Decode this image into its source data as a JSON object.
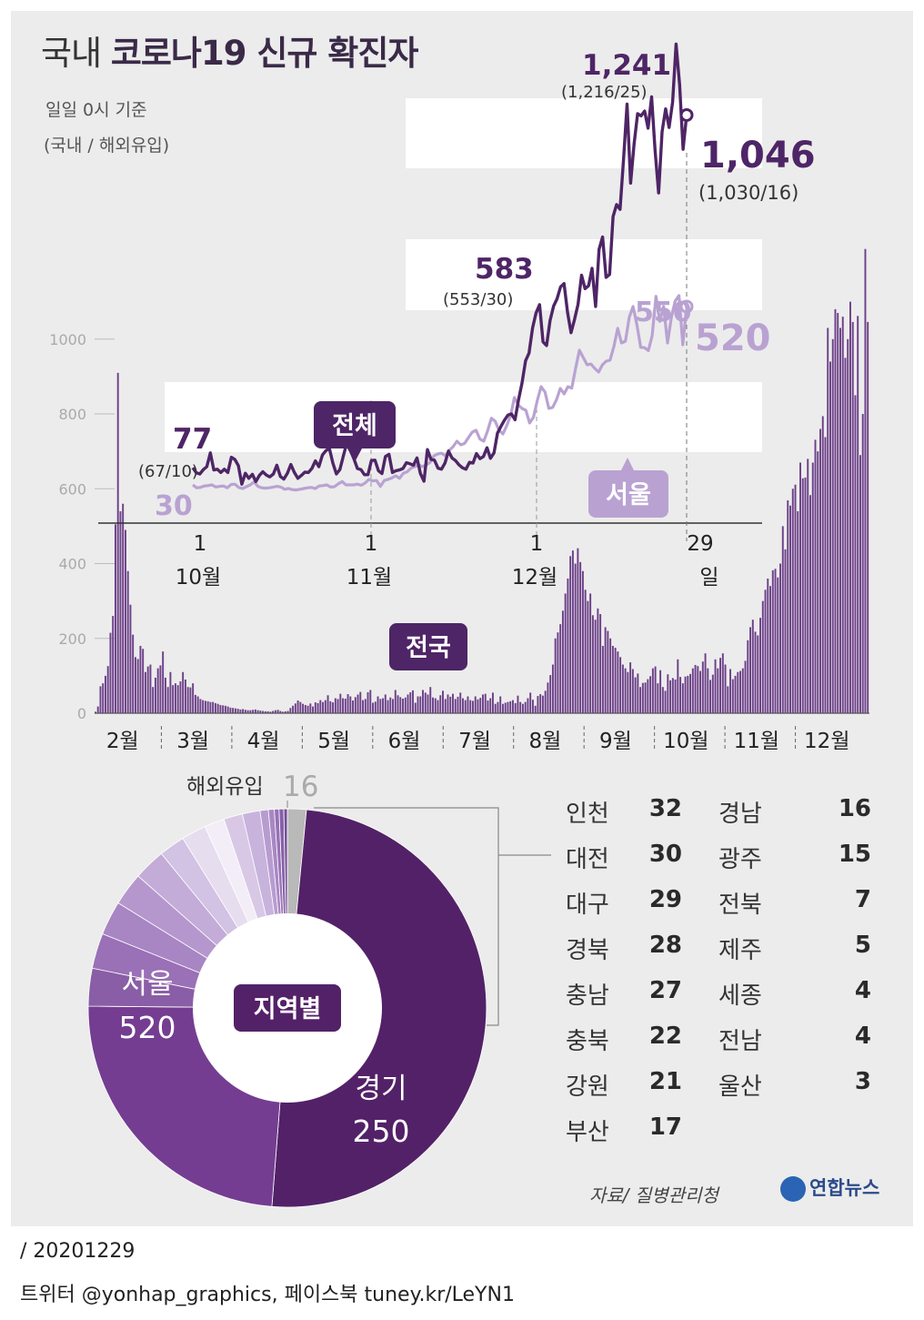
{
  "header": {
    "title_part1": "국내 ",
    "title_part2": "코로나19 신규 확진자",
    "subtitle1": "일일 0시 기준",
    "subtitle2": "(국내 / 해외유입)"
  },
  "chart_data": [
    {
      "type": "bar",
      "name_label": "전국",
      "x_labels": [
        "2월",
        "3월",
        "4월",
        "5월",
        "6월",
        "7월",
        "8월",
        "9월",
        "10월",
        "11월",
        "12월"
      ],
      "y_ticks": [
        "0",
        "200",
        "400",
        "600",
        "800",
        "1000"
      ],
      "ylim": [
        0,
        1250
      ],
      "values": [
        4,
        18,
        72,
        80,
        100,
        126,
        215,
        260,
        505,
        910,
        540,
        560,
        490,
        380,
        290,
        210,
        150,
        145,
        180,
        172,
        110,
        125,
        130,
        70,
        95,
        120,
        128,
        165,
        95,
        70,
        110,
        75,
        80,
        75,
        85,
        110,
        90,
        70,
        69,
        80,
        49,
        45,
        38,
        35,
        33,
        32,
        30,
        30,
        27,
        25,
        22,
        21,
        20,
        18,
        15,
        14,
        13,
        12,
        10,
        11,
        9,
        8,
        8,
        9,
        10,
        8,
        7,
        6,
        5,
        5,
        4,
        6,
        8,
        9,
        6,
        4,
        5,
        6,
        14,
        20,
        26,
        34,
        30,
        25,
        22,
        20,
        26,
        18,
        29,
        27,
        35,
        30,
        35,
        48,
        32,
        29,
        40,
        38,
        52,
        40,
        39,
        51,
        45,
        34,
        43,
        50,
        57,
        35,
        38,
        56,
        62,
        28,
        31,
        45,
        38,
        40,
        50,
        35,
        42,
        38,
        62,
        48,
        43,
        39,
        42,
        50,
        56,
        61,
        28,
        45,
        45,
        62,
        55,
        50,
        70,
        42,
        40,
        35,
        48,
        60,
        38,
        50,
        44,
        52,
        38,
        44,
        55,
        40,
        35,
        45,
        35,
        33,
        45,
        37,
        41,
        50,
        52,
        34,
        40,
        55,
        25,
        30,
        45,
        25,
        28,
        30,
        32,
        35,
        27,
        47,
        30,
        25,
        30,
        40,
        55,
        36,
        20,
        46,
        51,
        47,
        60,
        82,
        102,
        130,
        200,
        216,
        238,
        274,
        320,
        360,
        420,
        435,
        400,
        441,
        404,
        380,
        330,
        300,
        320,
        262,
        250,
        280,
        265,
        180,
        230,
        220,
        200,
        180,
        175,
        165,
        150,
        130,
        120,
        110,
        136,
        118,
        96,
        106,
        70,
        81,
        82,
        91,
        99,
        120,
        125,
        80,
        115,
        70,
        60,
        104,
        88,
        94,
        90,
        144,
        97,
        80,
        98,
        100,
        105,
        120,
        129,
        126,
        113,
        138,
        160,
        120,
        89,
        103,
        144,
        120,
        148,
        160,
        130,
        72,
        118,
        91,
        100,
        110,
        113,
        120,
        140,
        195,
        230,
        250,
        218,
        208,
        255,
        300,
        330,
        360,
        340,
        382,
        386,
        363,
        400,
        500,
        438,
        569,
        555,
        600,
        611,
        540,
        670,
        628,
        630,
        680,
        583,
        670,
        731,
        700,
        760,
        794,
        738,
        1030,
        940,
        1000,
        1080,
        1070,
        1030,
        1060,
        950,
        1000,
        1100,
        1046,
        850,
        1062,
        690,
        800,
        1241,
        1046
      ]
    },
    {
      "type": "line",
      "x_ticks": [
        {
          "day": "1",
          "month": "10월"
        },
        {
          "day": "1",
          "month": "11월"
        },
        {
          "day": "1",
          "month": "12월"
        },
        {
          "day": "29",
          "month": "일"
        }
      ],
      "series": [
        {
          "name": "전체",
          "start_value": "77",
          "start_detail": "(67/10)",
          "peak_value": "583",
          "peak_detail": "(553/30)",
          "max_value": "1,241",
          "max_detail": "(1,216/25)",
          "end_value": "1,046",
          "end_detail": "(1,030/16)",
          "values": [
            77,
            63,
            60,
            72,
            80,
            118,
            71,
            73,
            64,
            73,
            64,
            106,
            100,
            83,
            32,
            62,
            48,
            59,
            39,
            56,
            66,
            57,
            52,
            60,
            84,
            53,
            46,
            62,
            86,
            64,
            48,
            56,
            65,
            64,
            75,
            96,
            80,
            112,
            124,
            130,
            90,
            60,
            72,
            110,
            146,
            125,
            102,
            75,
            72,
            58,
            58,
            97,
            98,
            69,
            61,
            108,
            114,
            64,
            69,
            71,
            75,
            91,
            88,
            84,
            104,
            61,
            40,
            127,
            100,
            98,
            76,
            73,
            90,
            123,
            104,
            97,
            85,
            77,
            73,
            92,
            90,
            116,
            102,
            108,
            132,
            103,
            118,
            172,
            191,
            208,
            222,
            225,
            209,
            263,
            310,
            371,
            392,
            461,
            502,
            525,
            423,
            413,
            481,
            521,
            541,
            574,
            583,
            503,
            448,
            485,
            526,
            606,
            569,
            577,
            625,
            520,
            677,
            711,
            600,
            608,
            767,
            800,
            787,
            927,
            1076,
            859,
            966,
            1050,
            1044,
            1057,
            1010,
            1096,
            949,
            832,
            1000,
            1063,
            1012,
            1082,
            1241,
            1129,
            952,
            1046
          ]
        },
        {
          "name": "서울",
          "start_value": "30",
          "end_value": "520",
          "max_value": "550",
          "values": [
            30,
            22,
            23,
            27,
            28,
            30,
            24,
            26,
            27,
            22,
            31,
            32,
            23,
            20,
            25,
            30,
            38,
            26,
            22,
            21,
            22,
            24,
            26,
            24,
            18,
            20,
            17,
            16,
            18,
            20,
            22,
            23,
            20,
            27,
            28,
            30,
            24,
            25,
            33,
            39,
            30,
            30,
            30,
            32,
            29,
            35,
            45,
            41,
            42,
            26,
            42,
            45,
            49,
            55,
            48,
            62,
            66,
            76,
            80,
            85,
            80,
            85,
            92,
            110,
            115,
            117,
            110,
            125,
            135,
            150,
            140,
            144,
            160,
            175,
            180,
            156,
            150,
            178,
            213,
            205,
            180,
            170,
            193,
            220,
            270,
            250,
            240,
            235,
            200,
            216,
            262,
            300,
            285,
            240,
            243,
            264,
            295,
            280,
            300,
            296,
            350,
            400,
            380,
            360,
            362,
            350,
            340,
            360,
            370,
            373,
            410,
            460,
            420,
            425,
            490,
            520,
            470,
            408,
            407,
            399,
            440,
            548,
            479,
            520,
            420,
            490,
            535,
            550,
            415,
            520
          ]
        }
      ]
    },
    {
      "type": "pie",
      "center_label": "지역별",
      "slices": [
        {
          "label": "해외유입",
          "value": 16,
          "color": "#b9b9b9"
        },
        {
          "label": "서울",
          "value": 520,
          "color": "#532168"
        },
        {
          "label": "경기",
          "value": 250,
          "color": "#743d91"
        },
        {
          "label": "인천",
          "value": 32,
          "color": "#8a5ea6"
        },
        {
          "label": "대전",
          "value": 30,
          "color": "#9a70b6"
        },
        {
          "label": "대구",
          "value": 29,
          "color": "#a885c3"
        },
        {
          "label": "경북",
          "value": 28,
          "color": "#b597cd"
        },
        {
          "label": "충남",
          "value": 27,
          "color": "#c3acd8"
        },
        {
          "label": "충북",
          "value": 22,
          "color": "#d2c2e3"
        },
        {
          "label": "강원",
          "value": 21,
          "color": "#e6ddef"
        },
        {
          "label": "부산",
          "value": 17,
          "color": "#f2edf7"
        },
        {
          "label": "경남",
          "value": 16,
          "color": "#d8c8e6"
        },
        {
          "label": "광주",
          "value": 15,
          "color": "#c8b3dc"
        },
        {
          "label": "전북",
          "value": 7,
          "color": "#b79cd0"
        },
        {
          "label": "제주",
          "value": 5,
          "color": "#a987c4"
        },
        {
          "label": "세종",
          "value": 4,
          "color": "#9772b6"
        },
        {
          "label": "전남",
          "value": 4,
          "color": "#8660a8"
        },
        {
          "label": "울산",
          "value": 3,
          "color": "#744e9a"
        }
      ]
    }
  ],
  "pie_labels": {
    "overseas_label": "해외유입",
    "overseas_value": "16",
    "seoul_label": "서울",
    "seoul_value": "520",
    "gyeonggi_label": "경기",
    "gyeonggi_value": "250"
  },
  "region_legend": [
    {
      "name": "인천",
      "value": "32"
    },
    {
      "name": "대전",
      "value": "30"
    },
    {
      "name": "대구",
      "value": "29"
    },
    {
      "name": "경북",
      "value": "28"
    },
    {
      "name": "충남",
      "value": "27"
    },
    {
      "name": "충북",
      "value": "22"
    },
    {
      "name": "강원",
      "value": "21"
    },
    {
      "name": "부산",
      "value": "17"
    },
    {
      "name": "경남",
      "value": "16"
    },
    {
      "name": "광주",
      "value": "15"
    },
    {
      "name": "전북",
      "value": "7"
    },
    {
      "name": "제주",
      "value": "5"
    },
    {
      "name": "세종",
      "value": "4"
    },
    {
      "name": "전남",
      "value": "4"
    },
    {
      "name": "울산",
      "value": "3"
    }
  ],
  "footer": {
    "source": "자료/ 질병관리청",
    "logo": "연합뉴스",
    "date_line": "/ 20201229",
    "social_line": "트위터 @yonhap_graphics, 페이스북 tuney.kr/LeYN1"
  },
  "colors": {
    "dark_purple": "#4e2566",
    "light_purple": "#b9a2d2",
    "bars": "#6c3f88"
  }
}
